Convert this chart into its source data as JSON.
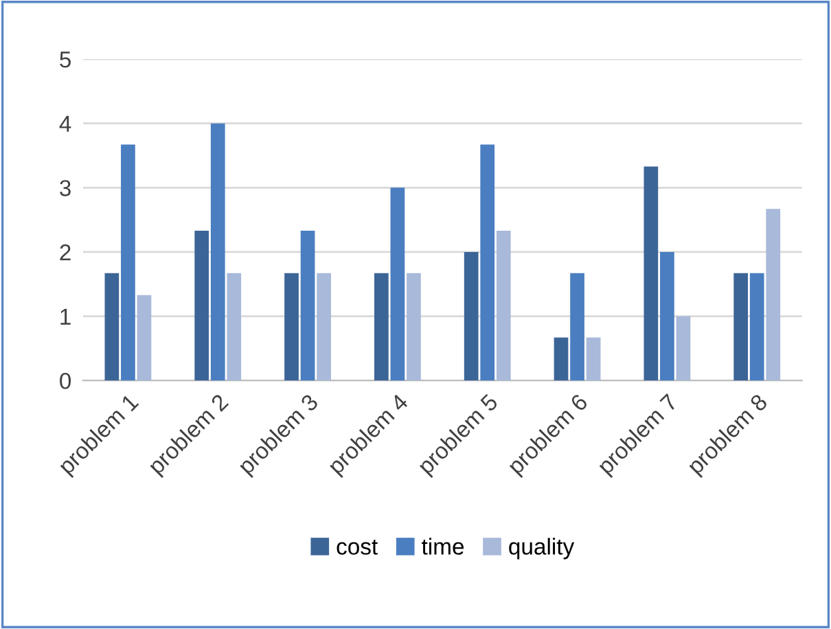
{
  "chart_data": {
    "type": "bar",
    "categories": [
      "problem 1",
      "problem 2",
      "problem 3",
      "problem 4",
      "problem 5",
      "problem 6",
      "problem 7",
      "problem 8"
    ],
    "series": [
      {
        "name": "cost",
        "color": "#3c6597",
        "values": [
          1.67,
          2.33,
          1.67,
          1.67,
          2,
          0.67,
          3.33,
          1.67
        ]
      },
      {
        "name": "time",
        "color": "#4a7ec0",
        "values": [
          3.67,
          4,
          2.33,
          3,
          3.67,
          1.67,
          2,
          1.67
        ]
      },
      {
        "name": "quality",
        "color": "#a8b9da",
        "values": [
          1.33,
          1.67,
          1.67,
          1.67,
          2.33,
          0.67,
          1,
          2.67
        ]
      }
    ],
    "ylim": [
      0,
      5
    ],
    "yticks": [
      0,
      1,
      2,
      3,
      4,
      5
    ],
    "grid": "y",
    "legend": "bottom"
  }
}
